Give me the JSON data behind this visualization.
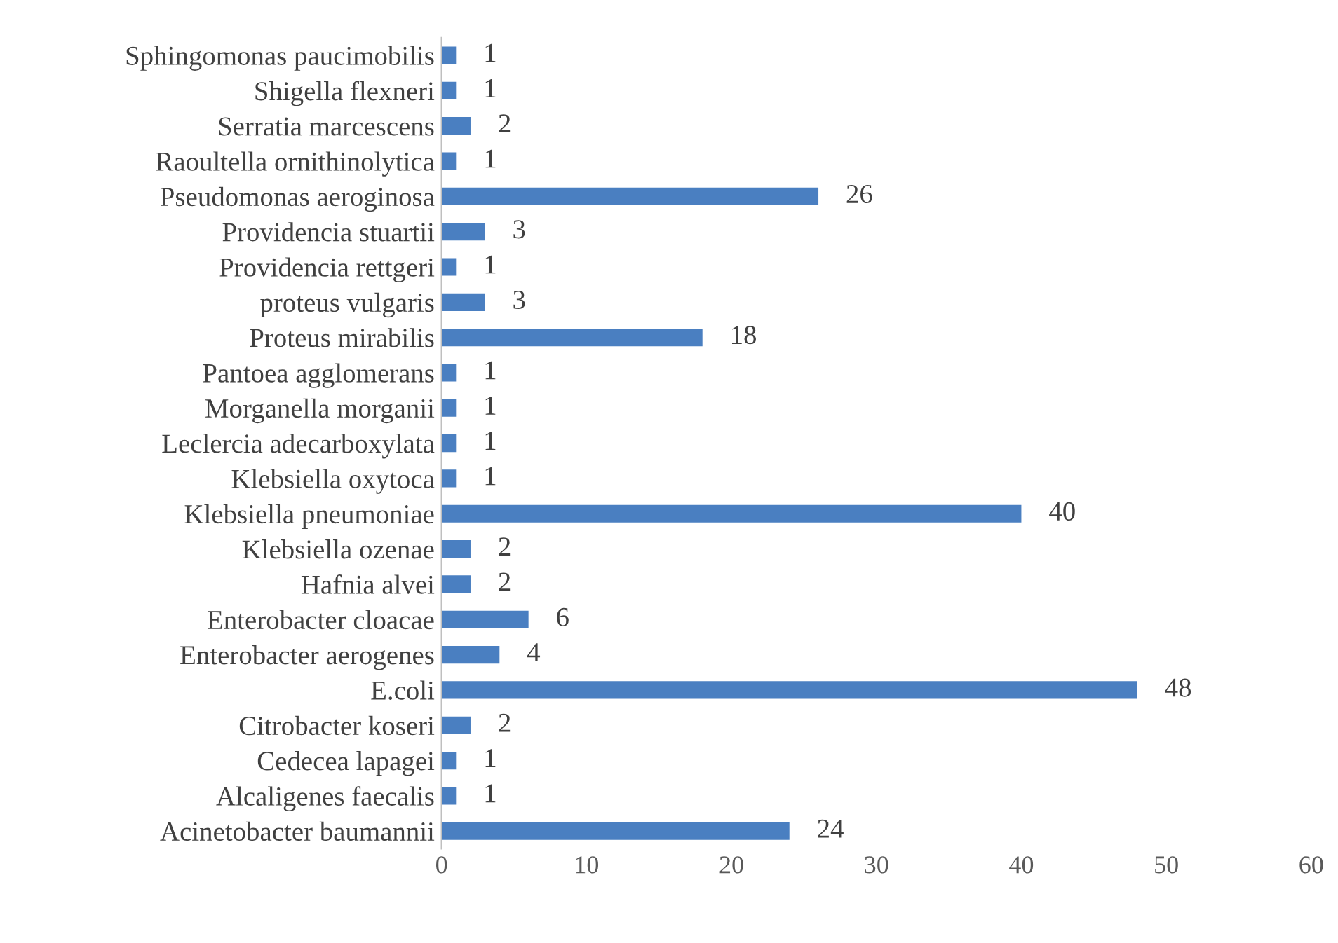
{
  "chart_data": {
    "type": "bar",
    "orientation": "horizontal",
    "categories": [
      "Sphingomonas paucimobilis",
      "Shigella flexneri",
      "Serratia marcescens",
      "Raoultella ornithinolytica",
      "Pseudomonas aeroginosa",
      "Providencia stuartii",
      "Providencia rettgeri",
      "proteus vulgaris",
      "Proteus mirabilis",
      "Pantoea agglomerans",
      "Morganella morganii",
      "Leclercia adecarboxylata",
      "Klebsiella oxytoca",
      "Klebsiella pneumoniae",
      "Klebsiella ozenae",
      "Hafnia alvei",
      "Enterobacter cloacae",
      "Enterobacter aerogenes",
      "E.coli",
      "Citrobacter koseri",
      "Cedecea lapagei",
      "Alcaligenes faecalis",
      "Acinetobacter baumannii"
    ],
    "values": [
      1,
      1,
      2,
      1,
      26,
      3,
      1,
      3,
      18,
      1,
      1,
      1,
      1,
      40,
      2,
      2,
      6,
      4,
      48,
      2,
      1,
      1,
      24
    ],
    "color": "#4a7fc1",
    "xlim": [
      0,
      60
    ],
    "xticks": [
      0,
      10,
      20,
      30,
      40,
      50,
      60
    ],
    "data_labels": true,
    "grid": false,
    "legend": false
  }
}
